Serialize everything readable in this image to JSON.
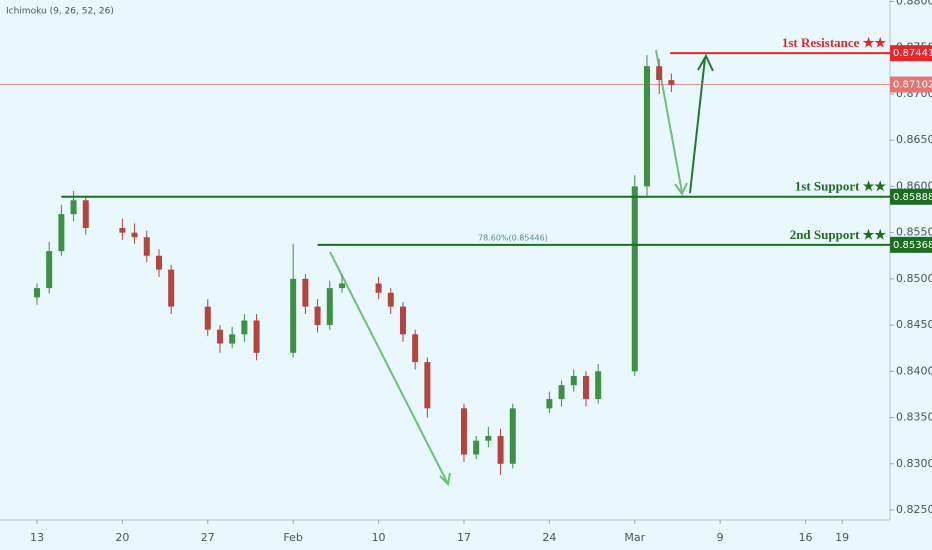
{
  "chart_data": {
    "type": "candlestick",
    "indicator": "Ichimoku (9, 26, 52, 26)",
    "x": [
      0,
      1,
      2,
      3,
      4,
      7,
      8,
      9,
      10,
      11,
      14,
      15,
      16,
      17,
      18,
      21,
      22,
      23,
      24,
      25,
      28,
      29,
      30,
      31,
      32,
      35,
      36,
      37,
      38,
      39,
      42,
      43,
      44,
      45,
      46,
      49,
      50,
      51,
      52
    ],
    "open": [
      0.848,
      0.849,
      0.853,
      0.857,
      0.8585,
      0.8555,
      0.855,
      0.8545,
      0.8525,
      0.851,
      0.847,
      0.8445,
      0.843,
      0.844,
      0.8455,
      0.842,
      0.85,
      0.847,
      0.845,
      0.849,
      0.8495,
      0.8485,
      0.847,
      0.844,
      0.841,
      0.836,
      0.831,
      0.8325,
      0.833,
      0.83,
      0.836,
      0.837,
      0.8385,
      0.8395,
      0.837,
      0.84,
      0.86,
      0.873,
      0.8715
    ],
    "high": [
      0.8495,
      0.854,
      0.858,
      0.8595,
      0.859,
      0.8565,
      0.856,
      0.8552,
      0.8532,
      0.8515,
      0.8478,
      0.845,
      0.8448,
      0.8462,
      0.8462,
      0.8538,
      0.8505,
      0.8478,
      0.8498,
      0.8505,
      0.8502,
      0.849,
      0.8475,
      0.8445,
      0.8415,
      0.8365,
      0.833,
      0.834,
      0.8338,
      0.8365,
      0.8378,
      0.839,
      0.8402,
      0.84,
      0.8408,
      0.8612,
      0.8742,
      0.8738,
      0.8722
    ],
    "low": [
      0.8472,
      0.8484,
      0.8525,
      0.8562,
      0.8548,
      0.8542,
      0.8538,
      0.8518,
      0.8502,
      0.8462,
      0.8438,
      0.842,
      0.8425,
      0.8432,
      0.8412,
      0.8415,
      0.8462,
      0.8442,
      0.8445,
      0.8485,
      0.8478,
      0.8462,
      0.8432,
      0.8402,
      0.835,
      0.8302,
      0.8305,
      0.8318,
      0.8288,
      0.8295,
      0.8355,
      0.8362,
      0.8378,
      0.8362,
      0.8365,
      0.8395,
      0.859,
      0.87,
      0.8702
    ],
    "close": [
      0.849,
      0.853,
      0.857,
      0.8585,
      0.8555,
      0.855,
      0.8545,
      0.8525,
      0.851,
      0.847,
      0.8445,
      0.843,
      0.844,
      0.8455,
      0.842,
      0.85,
      0.847,
      0.845,
      0.849,
      0.8495,
      0.8485,
      0.847,
      0.844,
      0.841,
      0.836,
      0.831,
      0.8325,
      0.833,
      0.83,
      0.836,
      0.837,
      0.8385,
      0.8395,
      0.837,
      0.84,
      0.86,
      0.873,
      0.8715,
      0.871
    ],
    "up_color": "#3f8f45",
    "down_color": "#b5443f",
    "xlim": [
      -3.03,
      69.92
    ],
    "xticks": [
      {
        "value": 0,
        "label": "13"
      },
      {
        "value": 7,
        "label": "20"
      },
      {
        "value": 14,
        "label": "27"
      },
      {
        "value": 21,
        "label": "Feb"
      },
      {
        "value": 28,
        "label": "10"
      },
      {
        "value": 35,
        "label": "17"
      },
      {
        "value": 42,
        "label": "24"
      },
      {
        "value": 49,
        "label": "Mar"
      },
      {
        "value": 56,
        "label": "9"
      },
      {
        "value": 63,
        "label": "16"
      },
      {
        "value": 66,
        "label": "19"
      }
    ],
    "ylim": [
      0.82392,
      0.88016
    ],
    "yticks": [
      {
        "value": 0.825,
        "label": "0.82500"
      },
      {
        "value": 0.83,
        "label": "0.83000"
      },
      {
        "value": 0.835,
        "label": "0.83500"
      },
      {
        "value": 0.84,
        "label": "0.84000"
      },
      {
        "value": 0.845,
        "label": "0.84500"
      },
      {
        "value": 0.85,
        "label": "0.85000"
      },
      {
        "value": 0.855,
        "label": "0.85500"
      },
      {
        "value": 0.86,
        "label": "0.86000"
      },
      {
        "value": 0.865,
        "label": "0.86500"
      },
      {
        "value": 0.87,
        "label": "0.87000"
      },
      {
        "value": 0.875,
        "label": "0.87500"
      },
      {
        "value": 0.88,
        "label": "0.88000"
      }
    ],
    "levels": [
      {
        "name": "1st Resistance ★★",
        "value": 0.87441,
        "from": 51.9,
        "color": "#e8262b"
      },
      {
        "name": "1st Support ★★",
        "value": 0.85888,
        "from": 2.0,
        "color": "#1f6b1f"
      },
      {
        "name": "2nd Support ★★",
        "value": 0.85368,
        "from": 23.0,
        "color": "#1f6b1f"
      }
    ],
    "last_price": {
      "value": 0.87102,
      "color": "#e57373"
    },
    "fib_label": "78.60%(0.85446)"
  }
}
